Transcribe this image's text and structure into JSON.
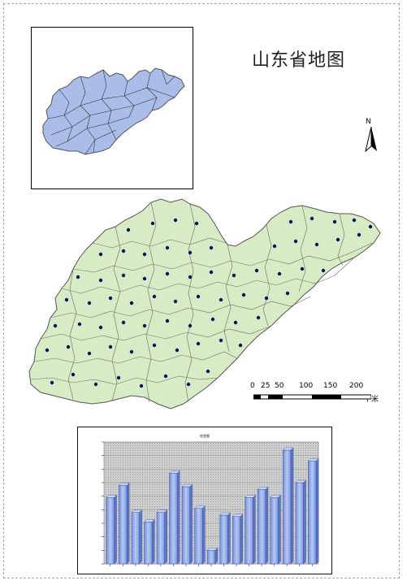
{
  "map": {
    "title": "山东省地图",
    "north_label": "N",
    "scale": {
      "ticks": [
        "0",
        "25",
        "50",
        "100",
        "150",
        "200"
      ],
      "unit": "千米"
    },
    "colors": {
      "inset_fill": "#a9bde8",
      "main_fill": "#d7ecc4",
      "boundary": "#555555",
      "county_seat": "#0b1260"
    }
  },
  "chart_data": {
    "type": "bar",
    "title": "柱状图",
    "categories": [
      "",
      "",
      "",
      "",
      "",
      "",
      "",
      "",
      "",
      "",
      "",
      "",
      "",
      "",
      "",
      "",
      ""
    ],
    "values": [
      4.9,
      5.8,
      3.8,
      3.1,
      3.8,
      6.7,
      5.7,
      4.1,
      1.0,
      3.6,
      3.5,
      4.9,
      5.5,
      4.9,
      8.4,
      6.0,
      7.6
    ],
    "ylim": [
      0,
      9
    ],
    "grid": true,
    "colors": {
      "bar": "#8fa8e6",
      "plot_bg": "#d4d4d4"
    }
  }
}
